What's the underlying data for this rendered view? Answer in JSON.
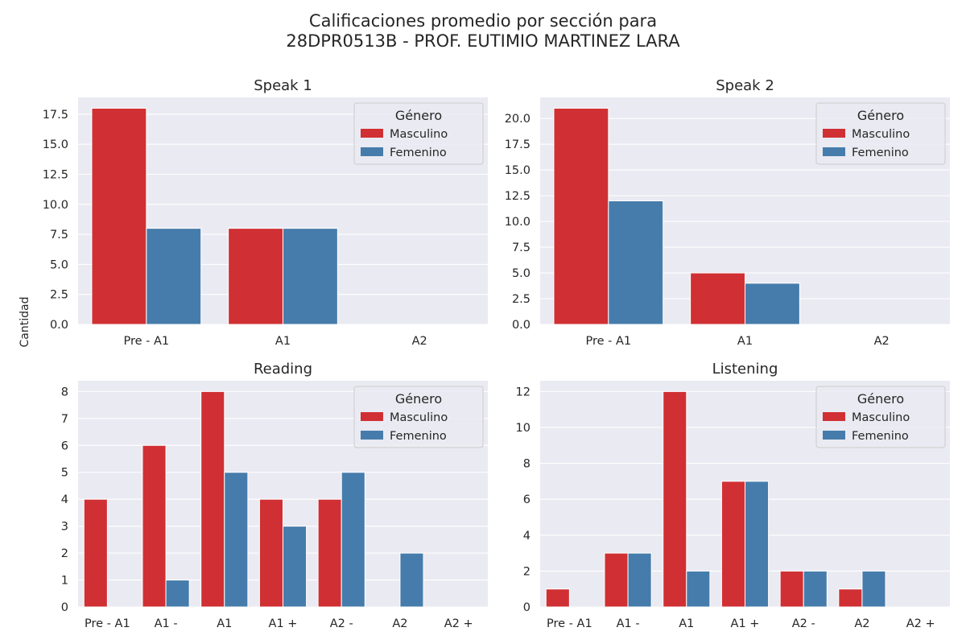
{
  "figure": {
    "title_line1": "Calificaciones promedio por sección para",
    "title_line2": "28DPR0513B - PROF. EUTIMIO MARTINEZ LARA",
    "ylabel": "Cantidad"
  },
  "colors": {
    "Masculino": "#d03033",
    "Femenino": "#467cab",
    "background": "#eaeaf2",
    "grid": "#ffffff"
  },
  "chart_data": [
    {
      "type": "bar",
      "title": "Speak 1",
      "categories": [
        "Pre - A1",
        "A1",
        "A2"
      ],
      "series": [
        {
          "name": "Masculino",
          "values": [
            18,
            8,
            0
          ]
        },
        {
          "name": "Femenino",
          "values": [
            8,
            8,
            0
          ]
        }
      ],
      "yticks": [
        "0.0",
        "2.5",
        "5.0",
        "7.5",
        "10.0",
        "12.5",
        "15.0",
        "17.5"
      ],
      "ytick_values": [
        0,
        2.5,
        5,
        7.5,
        10,
        12.5,
        15,
        17.5
      ],
      "ylim": [
        0,
        18.9
      ],
      "legend": {
        "title": "Género",
        "placement": "top-right"
      },
      "grid": true
    },
    {
      "type": "bar",
      "title": "Speak 2",
      "categories": [
        "Pre - A1",
        "A1",
        "A2"
      ],
      "series": [
        {
          "name": "Masculino",
          "values": [
            21,
            5,
            0
          ]
        },
        {
          "name": "Femenino",
          "values": [
            12,
            4,
            0
          ]
        }
      ],
      "yticks": [
        "0.0",
        "2.5",
        "5.0",
        "7.5",
        "10.0",
        "12.5",
        "15.0",
        "17.5",
        "20.0"
      ],
      "ytick_values": [
        0,
        2.5,
        5,
        7.5,
        10,
        12.5,
        15,
        17.5,
        20
      ],
      "ylim": [
        0,
        22.05
      ],
      "legend": {
        "title": "Género",
        "placement": "top-right"
      },
      "grid": true
    },
    {
      "type": "bar",
      "title": "Reading",
      "categories": [
        "Pre - A1",
        "A1 -",
        "A1",
        "A1 +",
        "A2 -",
        "A2",
        "A2 +"
      ],
      "series": [
        {
          "name": "Masculino",
          "values": [
            4,
            6,
            8,
            4,
            4,
            0,
            0
          ]
        },
        {
          "name": "Femenino",
          "values": [
            0,
            1,
            5,
            3,
            5,
            2,
            0
          ]
        }
      ],
      "yticks": [
        "0",
        "1",
        "2",
        "3",
        "4",
        "5",
        "6",
        "7",
        "8"
      ],
      "ytick_values": [
        0,
        1,
        2,
        3,
        4,
        5,
        6,
        7,
        8
      ],
      "ylim": [
        0,
        8.4
      ],
      "legend": {
        "title": "Género",
        "placement": "top-right"
      },
      "grid": true
    },
    {
      "type": "bar",
      "title": "Listening",
      "categories": [
        "Pre - A1",
        "A1 -",
        "A1",
        "A1 +",
        "A2 -",
        "A2",
        "A2 +"
      ],
      "series": [
        {
          "name": "Masculino",
          "values": [
            1,
            3,
            12,
            7,
            2,
            1,
            0
          ]
        },
        {
          "name": "Femenino",
          "values": [
            0,
            3,
            2,
            7,
            2,
            2,
            0
          ]
        }
      ],
      "yticks": [
        "0",
        "2",
        "4",
        "6",
        "8",
        "10",
        "12"
      ],
      "ytick_values": [
        0,
        2,
        4,
        6,
        8,
        10,
        12
      ],
      "ylim": [
        0,
        12.6
      ],
      "legend": {
        "title": "Género",
        "placement": "top-right"
      },
      "grid": true
    }
  ]
}
